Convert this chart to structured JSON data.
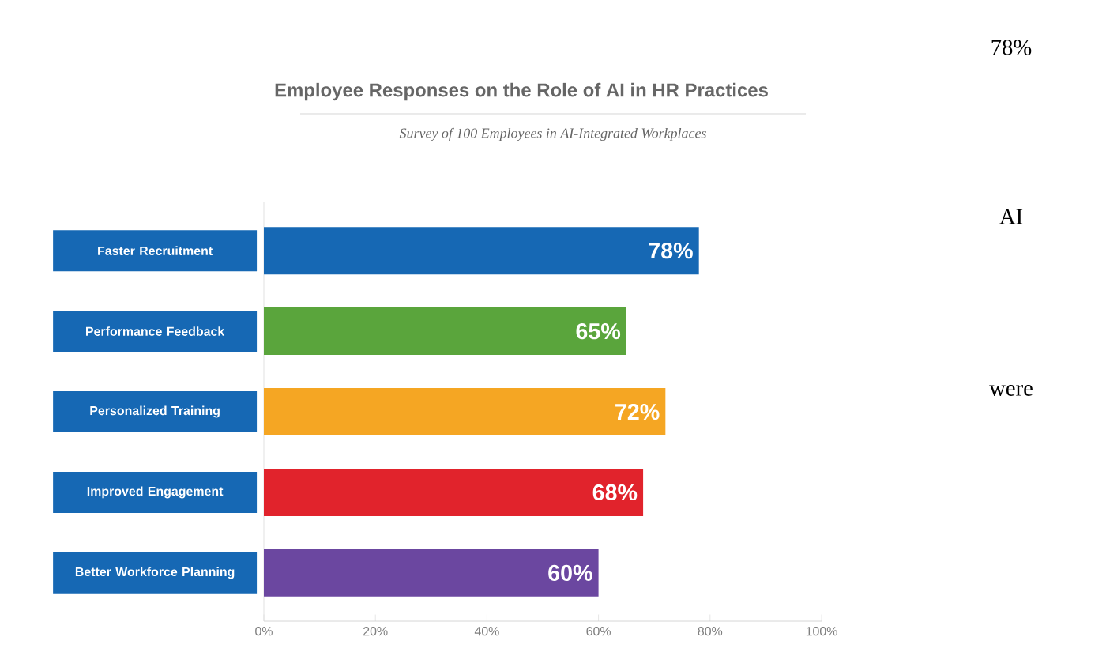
{
  "chart_data": {
    "type": "bar",
    "orientation": "horizontal",
    "title": "Employee Responses on the Role of AI in HR Practices",
    "subtitle": "Survey of 100 Employees in AI-Integrated Workplaces",
    "categories": [
      "Faster Recruitment",
      "Performance Feedback",
      "Personalized Training",
      "Improved Engagement",
      "Better Workforce Planning"
    ],
    "values": [
      78,
      65,
      72,
      68,
      60
    ],
    "value_labels": [
      "78%",
      "65%",
      "72%",
      "68%",
      "60%"
    ],
    "colors": [
      "#1668b4",
      "#5aa53c",
      "#f5a623",
      "#e1232c",
      "#6b47a0"
    ],
    "xlim": [
      0,
      100
    ],
    "xticks": [
      {
        "value": 0,
        "label": "0%"
      },
      {
        "value": 20,
        "label": "20%"
      },
      {
        "value": 40,
        "label": "40%"
      },
      {
        "value": 60,
        "label": "60%"
      },
      {
        "value": 80,
        "label": "80%"
      },
      {
        "value": 100,
        "label": "100%"
      }
    ],
    "annotations": [
      "78%",
      "AI",
      "were"
    ]
  }
}
